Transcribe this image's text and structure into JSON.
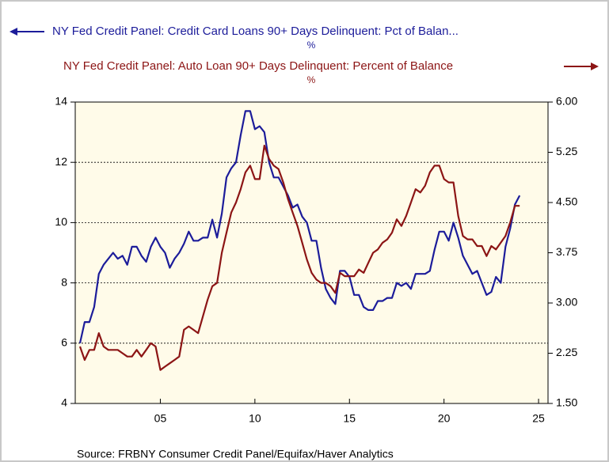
{
  "chart_data": {
    "type": "line",
    "source": "Source:  FRBNY Consumer Credit Panel/Equifax/Haver Analytics",
    "x": [
      2000.75,
      2001,
      2001.25,
      2001.5,
      2001.75,
      2002,
      2002.25,
      2002.5,
      2002.75,
      2003,
      2003.25,
      2003.5,
      2003.75,
      2004,
      2004.25,
      2004.5,
      2004.75,
      2005,
      2005.25,
      2005.5,
      2005.75,
      2006,
      2006.25,
      2006.5,
      2006.75,
      2007,
      2007.25,
      2007.5,
      2007.75,
      2008,
      2008.25,
      2008.5,
      2008.75,
      2009,
      2009.25,
      2009.5,
      2009.75,
      2010,
      2010.25,
      2010.5,
      2010.75,
      2011,
      2011.25,
      2011.5,
      2011.75,
      2012,
      2012.25,
      2012.5,
      2012.75,
      2013,
      2013.25,
      2013.5,
      2013.75,
      2014,
      2014.25,
      2014.5,
      2014.75,
      2015,
      2015.25,
      2015.5,
      2015.75,
      2016,
      2016.25,
      2016.5,
      2016.75,
      2017,
      2017.25,
      2017.5,
      2017.75,
      2018,
      2018.25,
      2018.5,
      2018.75,
      2019,
      2019.25,
      2019.5,
      2019.75,
      2020,
      2020.25,
      2020.5,
      2020.75,
      2021,
      2021.25,
      2021.5,
      2021.75,
      2022,
      2022.25,
      2022.5,
      2022.75,
      2023,
      2023.25,
      2023.5,
      2023.75,
      2024
    ],
    "series": [
      {
        "name": "NY Fed Credit Panel: Credit Card Loans 90+ Days Delinquent: Pct of Balan...",
        "unit": "%",
        "color": "#1c1c9a",
        "axis": "y",
        "values": [
          6.0,
          6.7,
          6.7,
          7.2,
          8.3,
          8.6,
          8.8,
          9.0,
          8.8,
          8.9,
          8.6,
          9.2,
          9.2,
          8.9,
          8.7,
          9.2,
          9.5,
          9.2,
          9.0,
          8.5,
          8.8,
          9.0,
          9.3,
          9.7,
          9.4,
          9.4,
          9.5,
          9.5,
          10.1,
          9.5,
          10.3,
          11.5,
          11.8,
          12.0,
          12.9,
          13.7,
          13.7,
          13.1,
          13.2,
          13.0,
          12.0,
          11.5,
          11.5,
          11.2,
          10.9,
          10.5,
          10.6,
          10.2,
          10.0,
          9.4,
          9.4,
          8.5,
          7.8,
          7.5,
          7.3,
          8.4,
          8.4,
          8.2,
          7.6,
          7.6,
          7.2,
          7.1,
          7.1,
          7.4,
          7.4,
          7.5,
          7.5,
          8.0,
          7.9,
          8.0,
          7.8,
          8.3,
          8.3,
          8.3,
          8.4,
          9.1,
          9.7,
          9.7,
          9.4,
          10.0,
          9.5,
          8.9,
          8.6,
          8.3,
          8.4,
          8.0,
          7.6,
          7.7,
          8.2,
          8.0,
          9.2,
          9.8,
          10.6,
          10.9
        ]
      },
      {
        "name": "NY Fed Credit Panel: Auto Loan 90+ Days Delinquent: Percent of Balance",
        "unit": "%",
        "color": "#8c1515",
        "axis": "y2",
        "values": [
          2.35,
          2.15,
          2.3,
          2.3,
          2.55,
          2.35,
          2.3,
          2.3,
          2.3,
          2.25,
          2.2,
          2.2,
          2.3,
          2.2,
          2.3,
          2.4,
          2.35,
          2.0,
          2.05,
          2.1,
          2.15,
          2.2,
          2.6,
          2.65,
          2.6,
          2.55,
          2.8,
          3.05,
          3.25,
          3.3,
          3.75,
          4.05,
          4.35,
          4.5,
          4.7,
          4.95,
          5.05,
          4.85,
          4.85,
          5.35,
          5.15,
          5.05,
          5.0,
          4.8,
          4.55,
          4.35,
          4.15,
          3.9,
          3.65,
          3.45,
          3.35,
          3.3,
          3.3,
          3.25,
          3.15,
          3.45,
          3.4,
          3.4,
          3.4,
          3.5,
          3.45,
          3.6,
          3.75,
          3.8,
          3.9,
          3.95,
          4.05,
          4.25,
          4.15,
          4.3,
          4.5,
          4.7,
          4.65,
          4.75,
          4.95,
          5.05,
          5.05,
          4.85,
          4.8,
          4.8,
          4.3,
          4.0,
          3.95,
          3.95,
          3.85,
          3.85,
          3.7,
          3.85,
          3.8,
          3.9,
          4.0,
          4.2,
          4.45,
          4.45
        ]
      }
    ],
    "xlim": [
      2000.5,
      2025.5
    ],
    "xticks": [
      {
        "value": 2005,
        "label": "05"
      },
      {
        "value": 2010,
        "label": "10"
      },
      {
        "value": 2015,
        "label": "15"
      },
      {
        "value": 2020,
        "label": "20"
      },
      {
        "value": 2025,
        "label": "25"
      }
    ],
    "ylim": [
      4,
      14
    ],
    "yticks": [
      4,
      6,
      8,
      10,
      12,
      14
    ],
    "y2lim": [
      1.5,
      6
    ],
    "y2ticks": [
      {
        "value": 1.5,
        "label": "1.50"
      },
      2.25,
      {
        "value": 3,
        "label": "3.00"
      },
      3.75,
      {
        "value": 4.5,
        "label": "4.50"
      },
      5.25,
      {
        "value": 6,
        "label": "6.00"
      }
    ],
    "grid": true
  }
}
